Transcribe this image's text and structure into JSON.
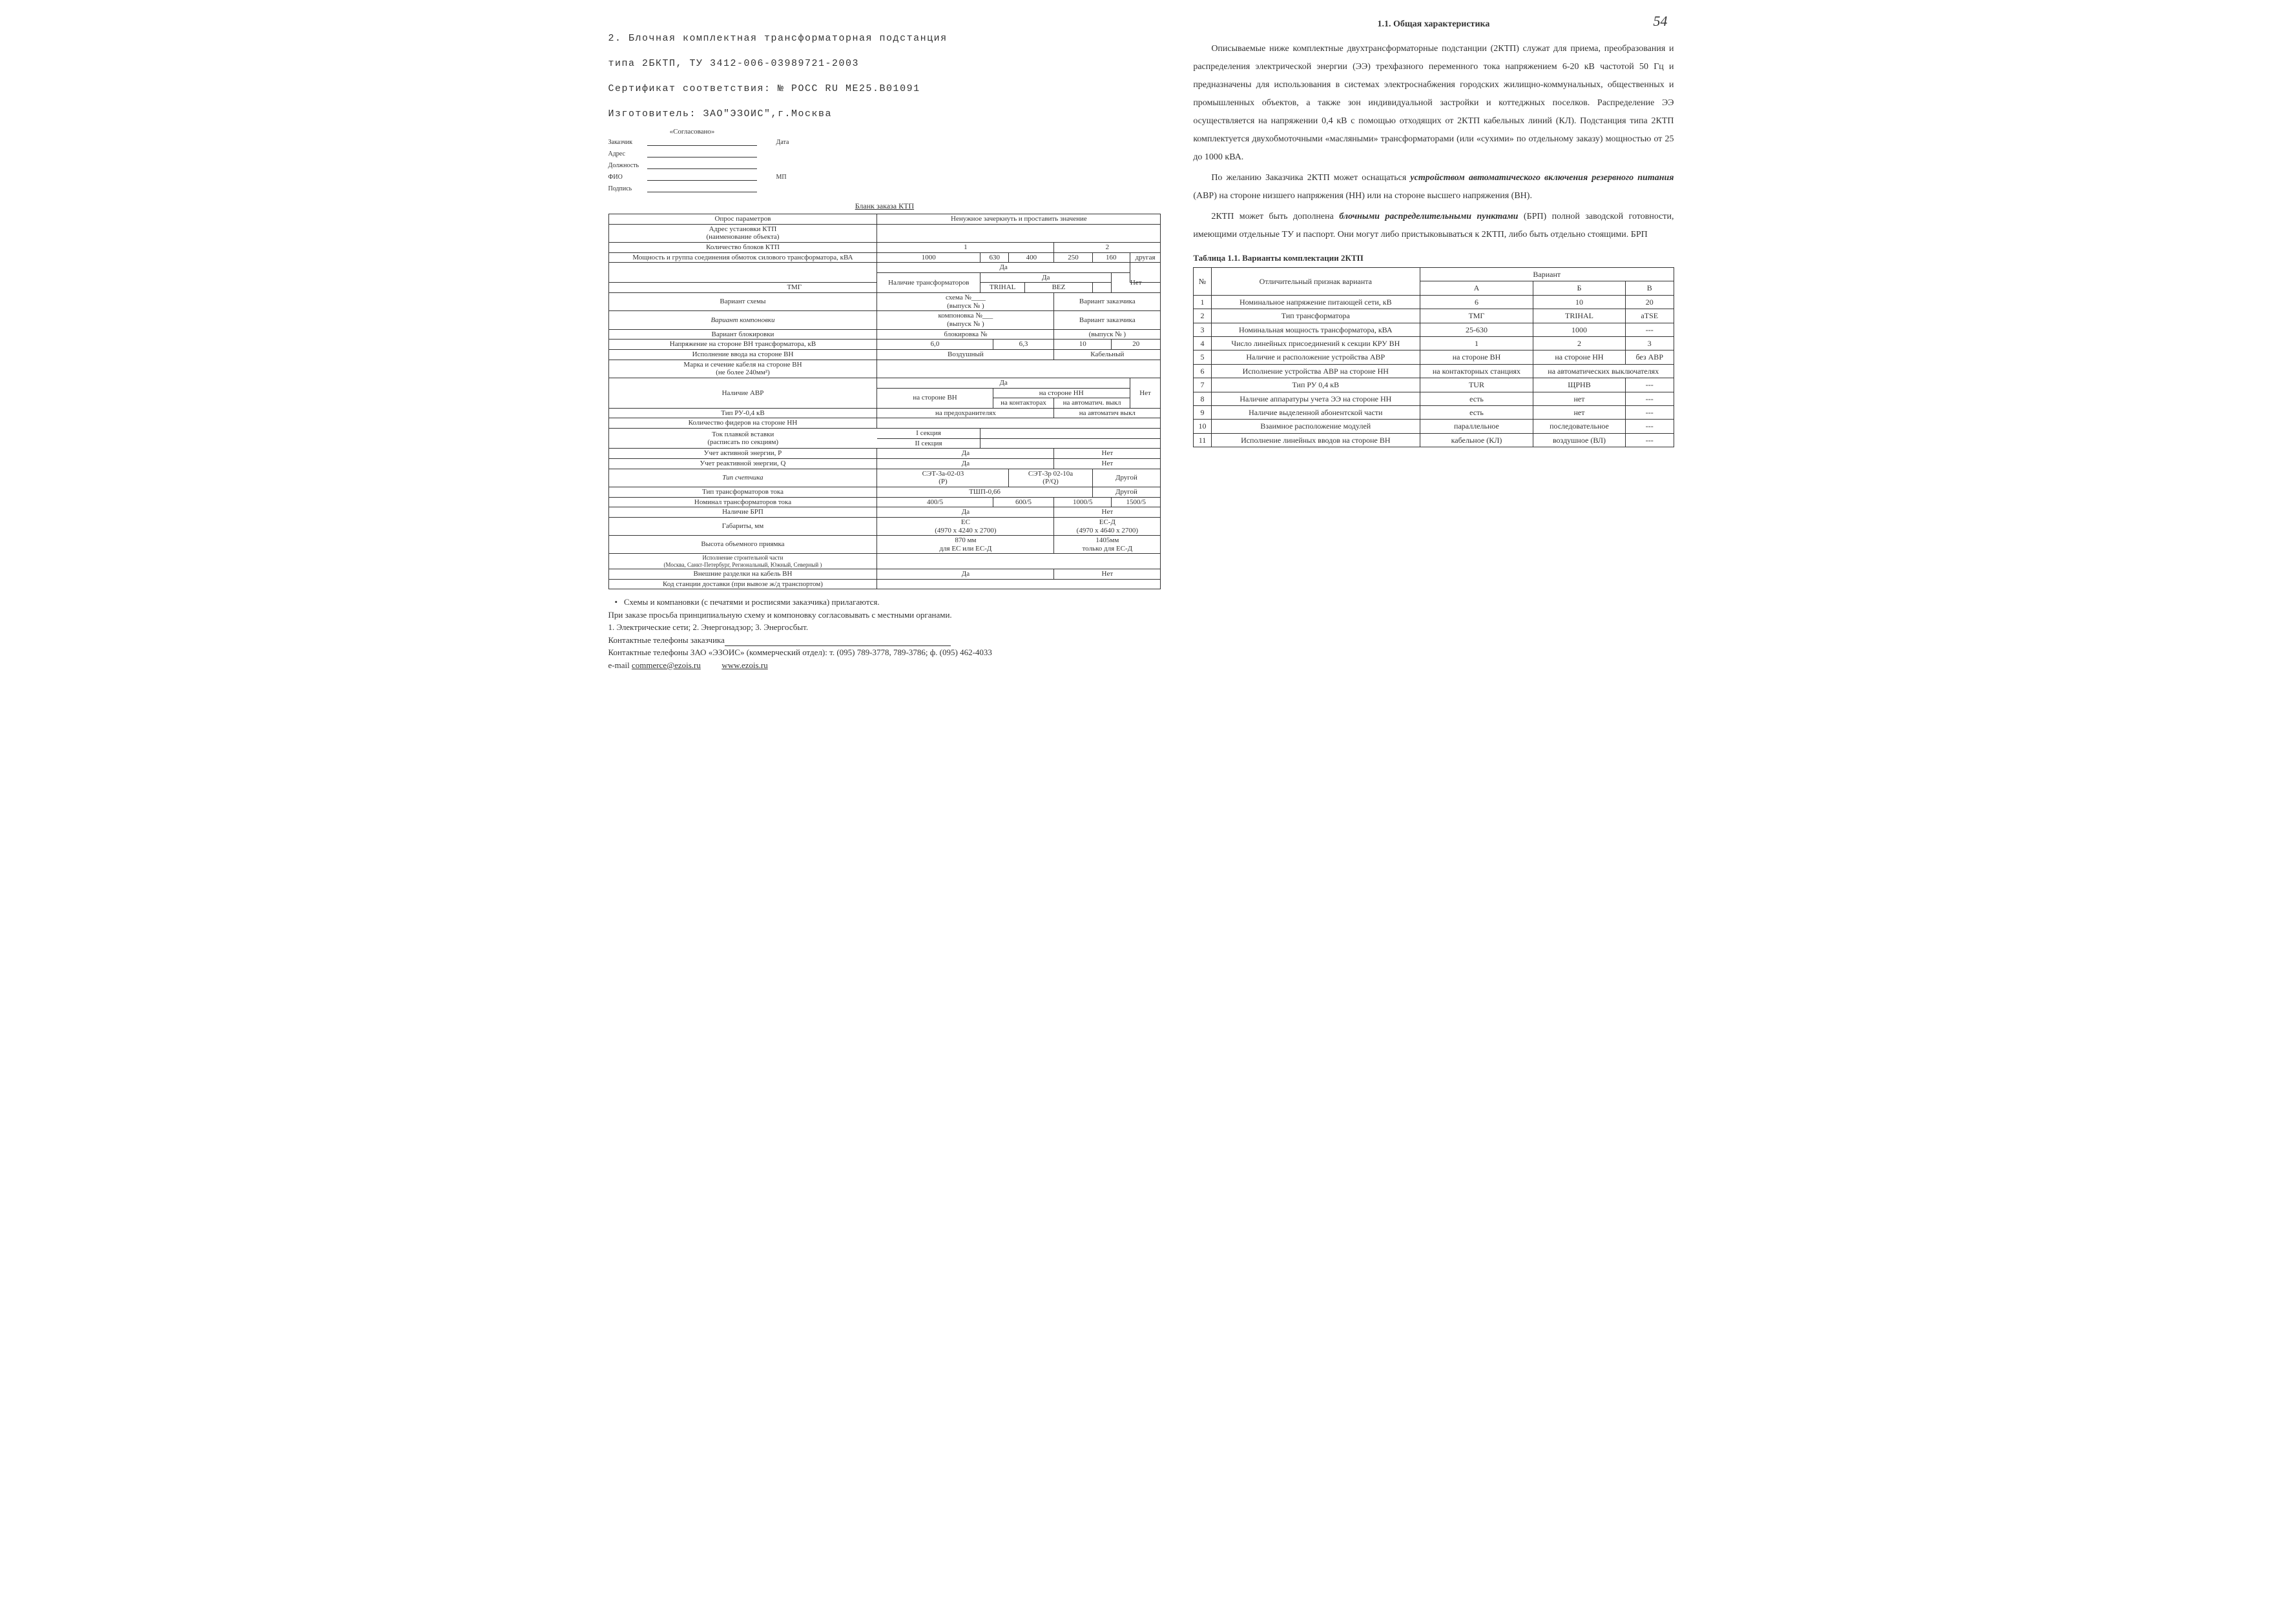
{
  "page_number": "54",
  "header": {
    "line1": "2.   Блочная комплектная трансформаторная подстанция",
    "line2": "        типа 2БКТП, ТУ 3412-006-03989721-2003",
    "line3": "Сертификат соответствия: № РОСС RU МЕ25.В01091",
    "line4": "Изготовитель: ЗАО\"ЭЗОИС\",г.Москва"
  },
  "agreed": {
    "title": "«Согласовано»",
    "fields": [
      {
        "label": "Заказчик",
        "extra": "Дата"
      },
      {
        "label": "Адрес",
        "extra": ""
      },
      {
        "label": "Должность",
        "extra": ""
      },
      {
        "label": "ФИО",
        "extra": "МП"
      },
      {
        "label": "Подпись",
        "extra": ""
      }
    ]
  },
  "form_caption": "Бланк заказа КТП",
  "order_table": {
    "header1": "Опрос параметров",
    "header2": "Ненужное зачеркнуть и проставить значение",
    "rows": [
      {
        "type": "single",
        "label": "Адрес установки КТП\n(наименование объекта)",
        "cells": [
          ""
        ]
      },
      {
        "type": "blocks",
        "label": "Количество блоков КТП",
        "c": [
          "1",
          "2"
        ]
      },
      {
        "type": "power",
        "label": "Мощность и группа соединения обмоток силового трансформатора, кВА",
        "c": [
          "1000",
          "630",
          "400",
          "250",
          "160",
          "другая"
        ]
      },
      {
        "type": "yesno_row",
        "label": "",
        "yes": "Да",
        "no": ""
      },
      {
        "type": "trans",
        "label": "Наличие трансформаторов",
        "c": [
          "ТМГ",
          "TRIHAL",
          "BEZ",
          "Нет"
        ]
      },
      {
        "type": "scheme",
        "label": "Вариант схемы",
        "left": "схема №____\n(выпуск №     )",
        "right": "Вариант заказчика"
      },
      {
        "type": "layout",
        "label": "Вариант компоновки",
        "left": "компоновка №___\n(выпуск №     )",
        "right": "Вариант заказчика",
        "italic": true
      },
      {
        "type": "block",
        "label": "Вариант блокировки",
        "left": "блокировка №",
        "right": "(выпуск №     )"
      },
      {
        "type": "voltage",
        "label": "Напряжение на стороне ВН трансформатора, кВ",
        "c": [
          "6,0",
          "6,3",
          "10",
          "20"
        ]
      },
      {
        "type": "input",
        "label": "Исполнение ввода на стороне ВН",
        "c": [
          "Воздушный",
          "Кабельный"
        ]
      },
      {
        "type": "single",
        "label": "Марка и сечение кабеля на стороне ВН\n(не более 240мм²)",
        "cells": [
          ""
        ]
      },
      {
        "type": "avr_top",
        "label": "",
        "yes": "Да"
      },
      {
        "type": "avr",
        "label": "Наличие АВР",
        "c1": "на стороне ВН",
        "c2": "на стороне НН",
        "c3": "Нет",
        "sub": [
          "на контакторах",
          "на автоматич. выкл"
        ]
      },
      {
        "type": "ru",
        "label": "Тип РУ-0,4 кВ",
        "c": [
          "на предохранителях",
          "на автоматич выкл"
        ]
      },
      {
        "type": "single",
        "label": "Количество фидеров на стороне НН",
        "cells": [
          ""
        ]
      },
      {
        "type": "sec",
        "label": "Ток плавкой вставки\n(расписать по секциям)",
        "s1": "I секция",
        "s2": "II секция"
      },
      {
        "type": "yn",
        "label": "Учет активной энергии, P",
        "yes": "Да",
        "no": "Нет"
      },
      {
        "type": "yn",
        "label": "Учет реактивной энергии, Q",
        "yes": "Да",
        "no": "Нет"
      },
      {
        "type": "meter",
        "label": "Тип счетчика",
        "italic": true,
        "c": [
          "СЭТ-3а-02-03\n(P)",
          "СЭТ-3р 02-10а\n(P/Q)",
          "Другой"
        ]
      },
      {
        "type": "ct",
        "label": "Тип трансформаторов тока",
        "c": [
          "ТШП-0,66",
          "Другой"
        ]
      },
      {
        "type": "ctn",
        "label": "Номинал трансформаторов тока",
        "c": [
          "400/5",
          "600/5",
          "1000/5",
          "1500/5"
        ]
      },
      {
        "type": "yn",
        "label": "Наличие БРП",
        "yes": "Да",
        "no": "Нет"
      },
      {
        "type": "dim",
        "label": "Габариты, мм",
        "c": [
          "ЕС\n(4970 х 4240 х 2700)",
          "ЕС-Д\n(4970 х 4640 х 2700)"
        ]
      },
      {
        "type": "height",
        "label": "Высота объемного приямка",
        "c": [
          "870 мм\nдля ЕС или ЕС-Д",
          "1405мм\nтолько для ЕС-Д"
        ]
      },
      {
        "type": "single",
        "label": "Исполнение строительной части\n(Москва, Санкт-Петербург, Региональный, Южный, Северный )",
        "cells": [
          ""
        ],
        "smallnote": true
      },
      {
        "type": "yn",
        "label": "Внешние разделки на кабель ВН",
        "yes": "Да",
        "no": "Нет"
      },
      {
        "type": "single",
        "label": "Код станции доставки (при вывозе ж/д транспортом)",
        "cells": [
          ""
        ]
      }
    ]
  },
  "notes": {
    "bullet": "Схемы и компановки (с печатями и росписями заказчика) прилагаются.",
    "line1": "При заказе просьба принципиальную схему и компоновку согласовывать с местными органами.",
    "line2": "1.   Электрические сети; 2. Энергонадзор; 3. Энергосбыт.",
    "line3": "Контактные телефоны заказчика",
    "line4_pre": "Контактные телефоны ЗАО «ЭЗОИС» (коммерческий отдел):  т. (095) 789-3778, 789-3786; ф. (095) 462-4033",
    "email_label": "e-mail  ",
    "email": "commerce@ezois.ru",
    "site": "www.ezois.ru"
  },
  "right": {
    "section_title": "1.1.  Общая характеристика",
    "p1": "Описываемые ниже комплектные двухтрансформаторные подстанции (2КТП) служат для приема, преобразования и распределения электрической энергии (ЭЭ) трехфазного переменного тока напряжением 6-20 кВ частотой 50 Гц и предназначены для использования в системах электроснабжения городских жилищно-коммунальных, общественных и промышленных объектов, а также зон индивидуальной застройки и коттеджных поселков. Распределение ЭЭ осуществляется на напряжении 0,4 кВ с помощью отходящих от 2КТП кабельных линий (КЛ). Подстанция типа 2КТП комплектуется двухобмоточными «масляными» трансформаторами (или «сухими» по отдельному заказу) мощностью от 25 до 1000 кВА.",
    "p2_pre": "По желанию Заказчика 2КТП может оснащаться ",
    "p2_bi1": "устройством автоматического включения резервного питания",
    "p2_mid": " (АВР) на стороне низшего напряжения (НН) или на стороне высшего напряжения (ВН).",
    "p3_pre": "2КТП может быть дополнена ",
    "p3_bi1": "блочными распределительными пунктами",
    "p3_post": " (БРП) полной заводской готовности, имеющими отдельные ТУ и паспорт. Они могут либо пристыковываться к 2КТП, либо быть отдельно стоящими. БРП",
    "table_caption": "Таблица 1.1. Варианты комплектации 2КТП",
    "variants": {
      "col_num": "№",
      "col_feat": "Отличительный признак варианта",
      "col_var": "Вариант",
      "heads": [
        "А",
        "Б",
        "В"
      ],
      "rows": [
        {
          "n": "1",
          "f": "Номинальное напряжение питающей сети, кВ",
          "c": [
            "6",
            "10",
            "20"
          ]
        },
        {
          "n": "2",
          "f": "Тип трансформатора",
          "c": [
            "ТМГ",
            "TRIHAL",
            "aTSE"
          ]
        },
        {
          "n": "3",
          "f": "Номинальная мощность трансформатора, кВА",
          "c": [
            "25-630",
            "1000",
            "---"
          ]
        },
        {
          "n": "4",
          "f": "Число линейных присоединений к секции КРУ ВН",
          "c": [
            "1",
            "2",
            "3"
          ]
        },
        {
          "n": "5",
          "f": "Наличие и расположение устройства АВР",
          "c": [
            "на стороне ВН",
            "на стороне НН",
            "без АВР"
          ]
        },
        {
          "n": "6",
          "f": "Исполнение устройства АВР на стороне НН",
          "c": [
            "на контакторных станциях",
            "на автоматических выключателях"
          ]
        },
        {
          "n": "7",
          "f": "Тип РУ 0,4 кВ",
          "c": [
            "TUR",
            "ЩРНВ",
            "---"
          ]
        },
        {
          "n": "8",
          "f": "Наличие аппаратуры учета ЭЭ на стороне НН",
          "c": [
            "есть",
            "нет",
            "---"
          ]
        },
        {
          "n": "9",
          "f": "Наличие выделенной абонентской части",
          "c": [
            "есть",
            "нет",
            "---"
          ]
        },
        {
          "n": "10",
          "f": "Взаимное расположение модулей",
          "c": [
            "параллельное",
            "последовательное",
            "---"
          ]
        },
        {
          "n": "11",
          "f": "Исполнение линейных вводов на стороне ВН",
          "c": [
            "кабельное (КЛ)",
            "воздушное (ВЛ)",
            "---"
          ]
        }
      ]
    }
  }
}
